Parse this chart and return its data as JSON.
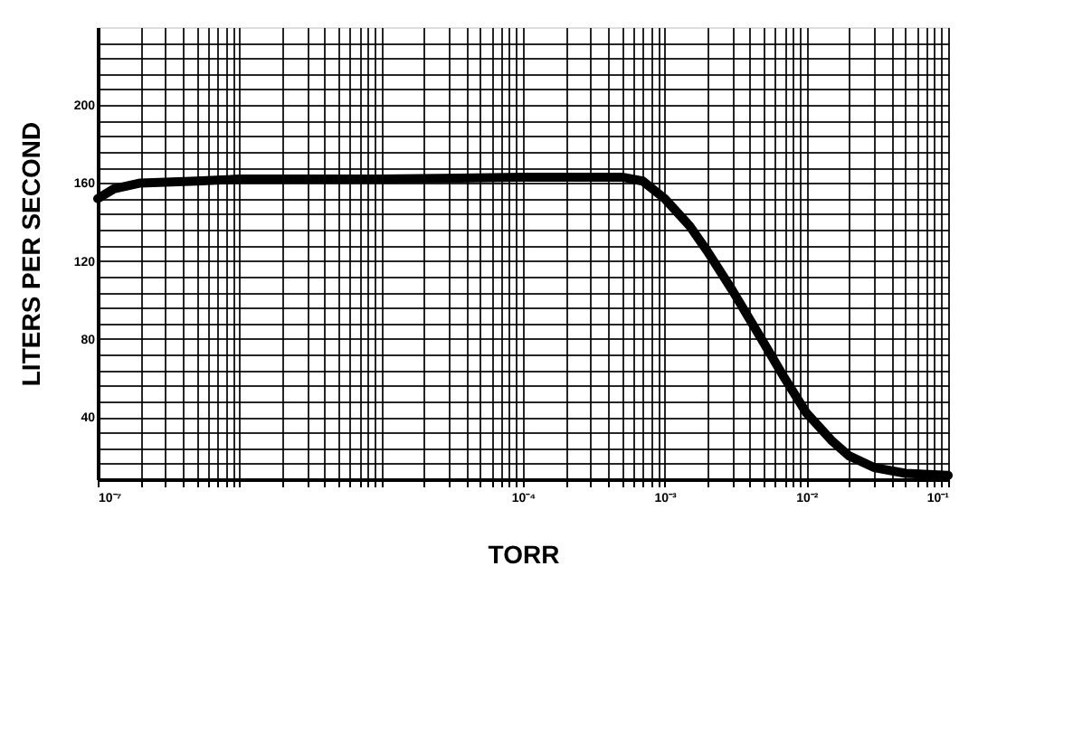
{
  "chart_data": {
    "type": "line",
    "xlabel": "TORR",
    "ylabel": "LITERS PER SECOND",
    "log": "x",
    "grid": true,
    "marker": "none",
    "line_style": "solid",
    "xlim": [
      1e-07,
      0.1
    ],
    "ylim": [
      8,
      240
    ],
    "xticks": [
      {
        "value": 1e-07,
        "label": "10⁻⁷"
      },
      {
        "value": 2e-07,
        "label": null
      },
      {
        "value": 3e-07,
        "label": null
      },
      {
        "value": 4e-07,
        "label": null
      },
      {
        "value": 5e-07,
        "label": null
      },
      {
        "value": 6e-07,
        "label": null
      },
      {
        "value": 7e-07,
        "label": null
      },
      {
        "value": 8e-07,
        "label": null
      },
      {
        "value": 9e-07,
        "label": null
      },
      {
        "value": 1e-06,
        "label": null
      },
      {
        "value": 2e-06,
        "label": null
      },
      {
        "value": 3e-06,
        "label": null
      },
      {
        "value": 4e-06,
        "label": null
      },
      {
        "value": 5e-06,
        "label": null
      },
      {
        "value": 6e-06,
        "label": null
      },
      {
        "value": 7e-06,
        "label": null
      },
      {
        "value": 8e-06,
        "label": null
      },
      {
        "value": 9e-06,
        "label": null
      },
      {
        "value": 1e-05,
        "label": null
      },
      {
        "value": 2e-05,
        "label": null
      },
      {
        "value": 3e-05,
        "label": null
      },
      {
        "value": 4e-05,
        "label": null
      },
      {
        "value": 5e-05,
        "label": null
      },
      {
        "value": 6e-05,
        "label": null
      },
      {
        "value": 7e-05,
        "label": null
      },
      {
        "value": 8e-05,
        "label": null
      },
      {
        "value": 9e-05,
        "label": null
      },
      {
        "value": 0.0001,
        "label": "10⁻⁴"
      },
      {
        "value": 0.0002,
        "label": null
      },
      {
        "value": 0.0003,
        "label": null
      },
      {
        "value": 0.0004,
        "label": null
      },
      {
        "value": 0.0005,
        "label": null
      },
      {
        "value": 0.0006,
        "label": null
      },
      {
        "value": 0.0007,
        "label": null
      },
      {
        "value": 0.0008,
        "label": null
      },
      {
        "value": 0.0009,
        "label": null
      },
      {
        "value": 0.001,
        "label": "10⁻³"
      },
      {
        "value": 0.002,
        "label": null
      },
      {
        "value": 0.003,
        "label": null
      },
      {
        "value": 0.004,
        "label": null
      },
      {
        "value": 0.005,
        "label": null
      },
      {
        "value": 0.006,
        "label": null
      },
      {
        "value": 0.007,
        "label": null
      },
      {
        "value": 0.008,
        "label": null
      },
      {
        "value": 0.009,
        "label": null
      },
      {
        "value": 0.01,
        "label": "10⁻²"
      },
      {
        "value": 0.02,
        "label": null
      },
      {
        "value": 0.03,
        "label": null
      },
      {
        "value": 0.04,
        "label": null
      },
      {
        "value": 0.05,
        "label": null
      },
      {
        "value": 0.06,
        "label": null
      },
      {
        "value": 0.07,
        "label": null
      },
      {
        "value": 0.08,
        "label": null
      },
      {
        "value": 0.09,
        "label": null
      },
      {
        "value": 0.1,
        "label": "10⁻¹"
      }
    ],
    "yticks": [
      {
        "value": 16,
        "label": null
      },
      {
        "value": 24,
        "label": null
      },
      {
        "value": 32,
        "label": null
      },
      40,
      {
        "value": 48,
        "label": null
      },
      {
        "value": 56,
        "label": null
      },
      {
        "value": 64,
        "label": null
      },
      {
        "value": 72,
        "label": null
      },
      80,
      {
        "value": 88,
        "label": null
      },
      {
        "value": 96,
        "label": null
      },
      {
        "value": 104,
        "label": null
      },
      {
        "value": 112,
        "label": null
      },
      120,
      {
        "value": 128,
        "label": null
      },
      {
        "value": 136,
        "label": null
      },
      {
        "value": 144,
        "label": null
      },
      {
        "value": 152,
        "label": null
      },
      160,
      {
        "value": 168,
        "label": null
      },
      {
        "value": 176,
        "label": null
      },
      {
        "value": 184,
        "label": null
      },
      {
        "value": 192,
        "label": null
      },
      200,
      {
        "value": 208,
        "label": null
      },
      {
        "value": 216,
        "label": null
      },
      {
        "value": 224,
        "label": null
      },
      {
        "value": 232,
        "label": null
      }
    ],
    "series": [
      {
        "color": "#000000",
        "x": [
          1e-07,
          1.3e-07,
          2e-07,
          5e-07,
          1e-06,
          1e-05,
          0.0001,
          0.0003,
          0.0005,
          0.0007,
          0.001,
          0.0015,
          0.002,
          0.003,
          0.005,
          0.007,
          0.01,
          0.015,
          0.02,
          0.03,
          0.05,
          0.1
        ],
        "values": [
          152,
          157,
          160,
          161,
          162,
          162,
          163,
          163,
          163,
          161,
          152,
          138,
          125,
          105,
          78,
          60,
          42,
          28,
          20,
          14,
          11,
          10
        ]
      }
    ]
  }
}
